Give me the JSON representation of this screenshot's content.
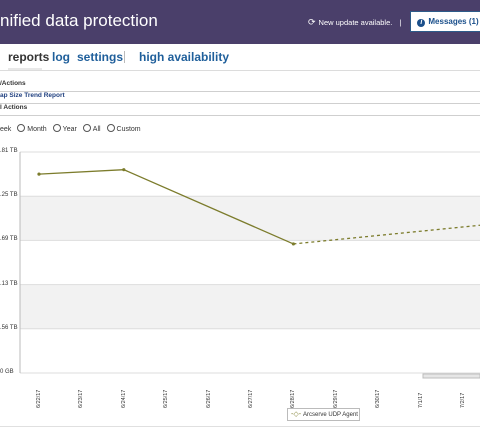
{
  "header": {
    "title": "nified data protection",
    "update_text": "New update available.",
    "update_separator": "|",
    "messages_label": "Messages (1)"
  },
  "nav": {
    "tabs": [
      {
        "label": "reports",
        "active": true
      },
      {
        "label": "log",
        "active": false
      },
      {
        "label": "settings",
        "active": false
      },
      {
        "label": "high availability",
        "active": false
      }
    ]
  },
  "sections": {
    "header1": "/Actions",
    "header2": "ap Size Trend Report",
    "header3": "l Actions"
  },
  "range": {
    "options": [
      "eek",
      "Month",
      "Year",
      "All",
      "Custom"
    ]
  },
  "chart_data": {
    "type": "line",
    "y_ticks": [
      "0 GB",
      ".56 TB",
      ".13 TB",
      ".69 TB",
      ".25 TB",
      ".81 TB"
    ],
    "x": [
      "6/22/17",
      "6/23/17",
      "6/24/17",
      "6/25/17",
      "6/26/17",
      "6/27/17",
      "6/28/17",
      "6/29/17",
      "6/30/17",
      "7/1/17",
      "7/2/17"
    ],
    "ylim": [
      0,
      5
    ],
    "series": [
      {
        "name": "Arcserve UDP Agent",
        "color": "#7c7c2c",
        "actual": [
          [
            0,
            4.5
          ],
          [
            2,
            4.6
          ],
          [
            6,
            2.92
          ]
        ],
        "forecast": [
          [
            6,
            2.92
          ],
          [
            11,
            3.4
          ]
        ]
      }
    ],
    "grid": true,
    "legend_position": "bottom"
  },
  "colors": {
    "header_bg": "#4a3f6a",
    "tab_link": "#1f5f9b",
    "series": "#7c7c2c"
  }
}
